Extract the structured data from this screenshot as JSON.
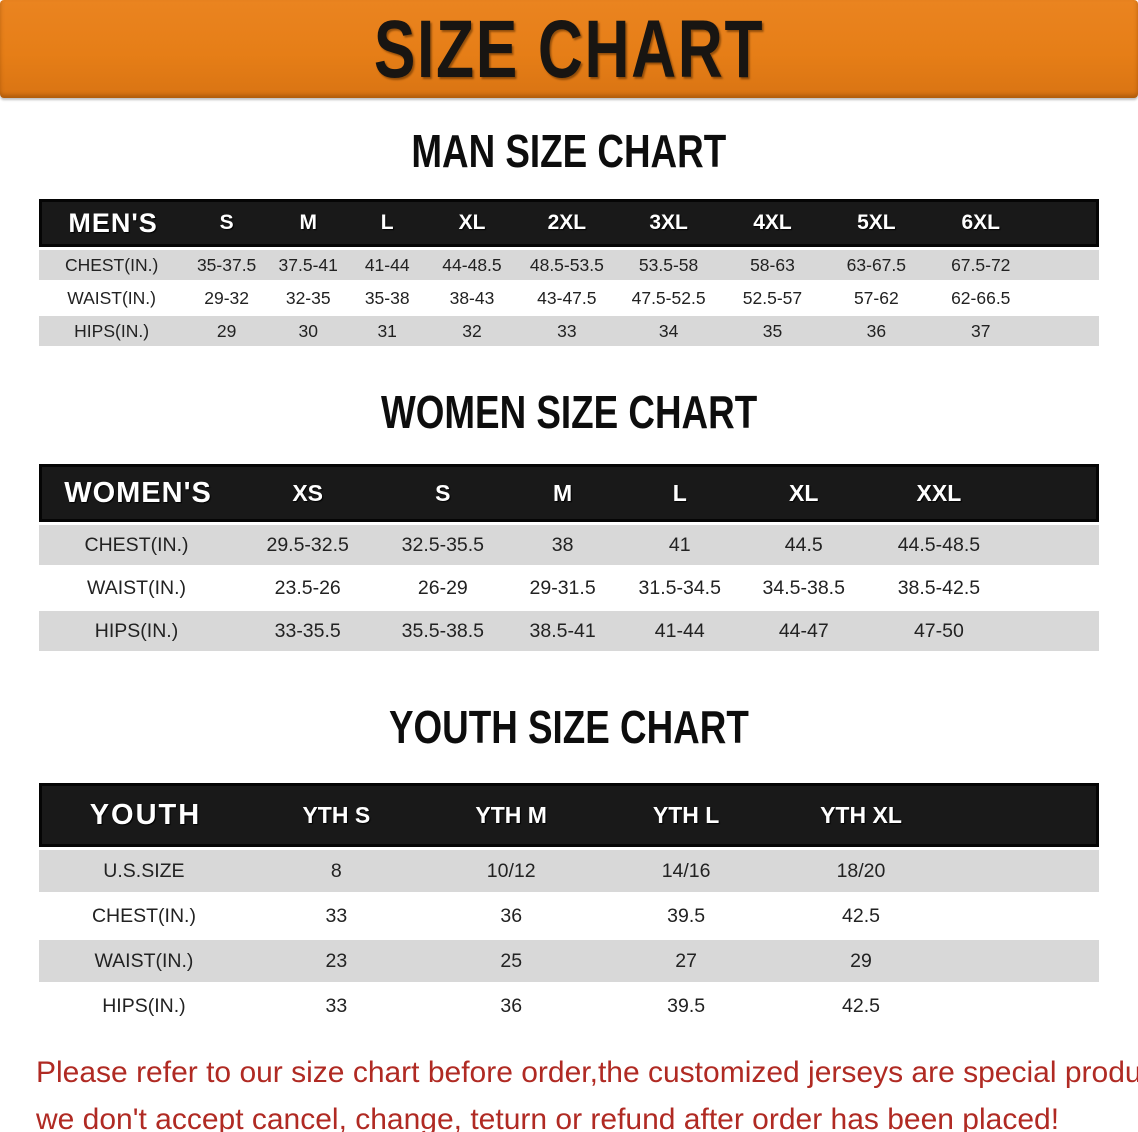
{
  "banner": {
    "title": "SIZE CHART",
    "bg_color": "#e67e17",
    "text_color": "#181512"
  },
  "sections": [
    {
      "heading": "MAN SIZE CHART",
      "table": {
        "label": "MEN'S",
        "columns": [
          "S",
          "M",
          "L",
          "XL",
          "2XL",
          "3XL",
          "4XL",
          "5XL",
          "6XL"
        ],
        "rows": [
          {
            "label": "CHEST(IN.)",
            "values": [
              "35-37.5",
              "37.5-41",
              "41-44",
              "44-48.5",
              "48.5-53.5",
              "53.5-58",
              "58-63",
              "63-67.5",
              "67.5-72"
            ]
          },
          {
            "label": "WAIST(IN.)",
            "values": [
              "29-32",
              "32-35",
              "35-38",
              "38-43",
              "43-47.5",
              "47.5-52.5",
              "52.5-57",
              "57-62",
              "62-66.5"
            ]
          },
          {
            "label": "HIPS(IN.)",
            "values": [
              "29",
              "30",
              "31",
              "32",
              "33",
              "34",
              "35",
              "36",
              "37"
            ]
          }
        ]
      }
    },
    {
      "heading": "WOMEN SIZE CHART",
      "table": {
        "label": "WOMEN'S",
        "columns": [
          "XS",
          "S",
          "M",
          "L",
          "XL",
          "XXL"
        ],
        "rows": [
          {
            "label": "CHEST(IN.)",
            "values": [
              "29.5-32.5",
              "32.5-35.5",
              "38",
              "41",
              "44.5",
              "44.5-48.5"
            ]
          },
          {
            "label": "WAIST(IN.)",
            "values": [
              "23.5-26",
              "26-29",
              "29-31.5",
              "31.5-34.5",
              "34.5-38.5",
              "38.5-42.5"
            ]
          },
          {
            "label": "HIPS(IN.)",
            "values": [
              "33-35.5",
              "35.5-38.5",
              "38.5-41",
              "41-44",
              "44-47",
              "47-50"
            ]
          }
        ]
      }
    },
    {
      "heading": "YOUTH SIZE CHART",
      "table": {
        "label": "YOUTH",
        "columns": [
          "YTH S",
          "YTH M",
          "YTH L",
          "YTH XL"
        ],
        "rows": [
          {
            "label": "U.S.SIZE",
            "values": [
              "8",
              "10/12",
              "14/16",
              "18/20"
            ]
          },
          {
            "label": "CHEST(IN.)",
            "values": [
              "33",
              "36",
              "39.5",
              "42.5"
            ]
          },
          {
            "label": "WAIST(IN.)",
            "values": [
              "23",
              "25",
              "27",
              "29"
            ]
          },
          {
            "label": "HIPS(IN.)",
            "values": [
              "33",
              "36",
              "39.5",
              "42.5"
            ]
          }
        ]
      }
    }
  ],
  "disclaimer": {
    "line1": "Please refer to our size chart before order,the customized jerseys are special products,",
    "line2": "we don't accept cancel, change, teturn or refund after order has been placed!",
    "color": "#b02a23"
  }
}
